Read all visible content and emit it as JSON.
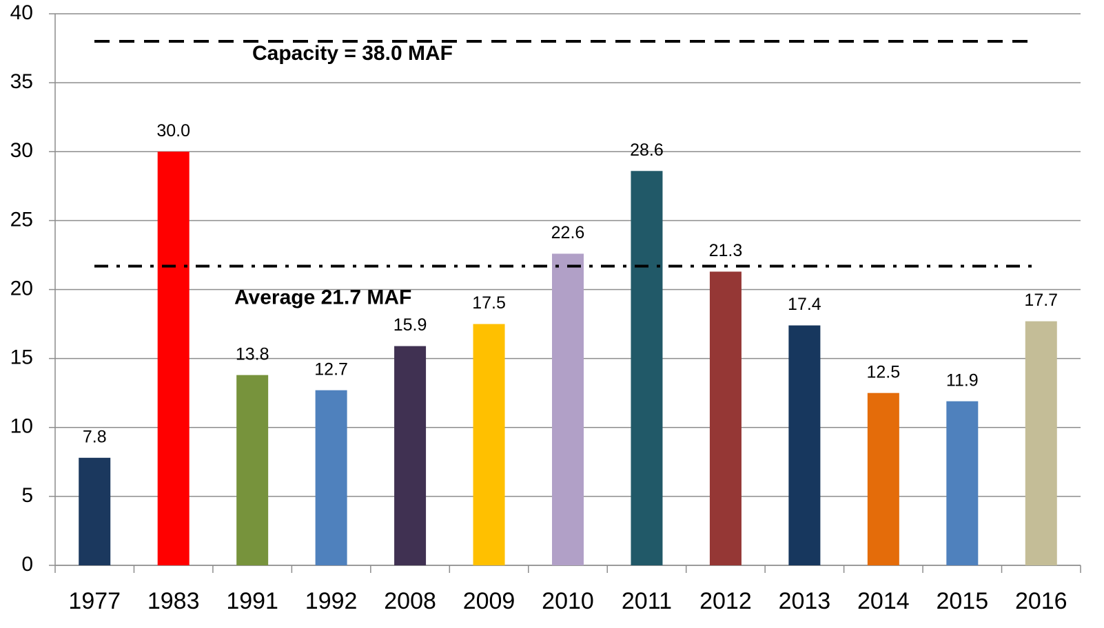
{
  "chart_data": {
    "type": "bar",
    "categories": [
      "1977",
      "1983",
      "1991",
      "1992",
      "2008",
      "2009",
      "2010",
      "2011",
      "2012",
      "2013",
      "2014",
      "2015",
      "2016"
    ],
    "values": [
      7.8,
      30.0,
      13.8,
      12.7,
      15.9,
      17.5,
      22.6,
      28.6,
      21.3,
      17.4,
      12.5,
      11.9,
      17.7
    ],
    "value_labels": [
      "7.8",
      "30.0",
      "13.8",
      "12.7",
      "15.9",
      "17.5",
      "22.6",
      "28.6",
      "21.3",
      "17.4",
      "12.5",
      "11.9",
      "17.7"
    ],
    "colors": [
      "#1b385e",
      "#ff0000",
      "#77933c",
      "#4f81bd",
      "#403152",
      "#ffc000",
      "#b1a0c7",
      "#215968",
      "#953735",
      "#17375e",
      "#e46c0a",
      "#4f81bd",
      "#c4bd97"
    ],
    "ylim": [
      0,
      40
    ],
    "yticks": [
      0,
      5,
      10,
      15,
      20,
      25,
      30,
      35,
      40
    ],
    "grid": true,
    "reference_lines": [
      {
        "value": 38.0,
        "label": "Capacity = 38.0 MAF",
        "style": "dashed"
      },
      {
        "value": 21.7,
        "label": "Average 21.7 MAF",
        "style": "dashdot"
      }
    ]
  }
}
